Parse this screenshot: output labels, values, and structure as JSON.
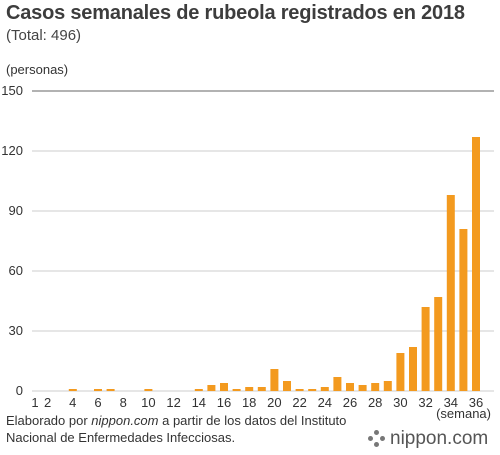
{
  "header": {
    "title": "Casos semanales de rubeola registrados en 2018",
    "subtitle": "(Total: 496)",
    "unit_label": "(personas)"
  },
  "chart_data": {
    "type": "bar",
    "title": "Casos semanales de rubeola registrados en 2018",
    "subtitle": "(Total: 496)",
    "ylabel": "(personas)",
    "xlabel": "(semana)",
    "ylim": [
      0,
      150
    ],
    "yticks": [
      0,
      30,
      60,
      90,
      120,
      150
    ],
    "xtick_labels": [
      "1",
      "2",
      "4",
      "6",
      "8",
      "10",
      "12",
      "14",
      "16",
      "18",
      "20",
      "22",
      "24",
      "26",
      "28",
      "30",
      "32",
      "34",
      "36"
    ],
    "grid": true,
    "bar_color": "#f39a1f",
    "categories": [
      "1",
      "2",
      "3",
      "4",
      "5",
      "6",
      "7",
      "8",
      "9",
      "10",
      "11",
      "12",
      "13",
      "14",
      "15",
      "16",
      "17",
      "18",
      "19",
      "20",
      "21",
      "22",
      "23",
      "24",
      "25",
      "26",
      "27",
      "28",
      "29",
      "30",
      "31",
      "32",
      "33",
      "34",
      "35",
      "36"
    ],
    "values": [
      0,
      0,
      0,
      1,
      0,
      1,
      1,
      0,
      0,
      1,
      0,
      0,
      0,
      1,
      3,
      4,
      1,
      2,
      2,
      11,
      5,
      1,
      1,
      2,
      7,
      4,
      3,
      4,
      5,
      19,
      22,
      42,
      47,
      98,
      81,
      127
    ]
  },
  "footer": {
    "source_prefix": "Elaborado por ",
    "source_site": "nippon.com",
    "source_suffix": " a partir de los datos del Instituto Nacional de Enfermedades Infecciosas.",
    "logo_text": "nippon.com"
  }
}
